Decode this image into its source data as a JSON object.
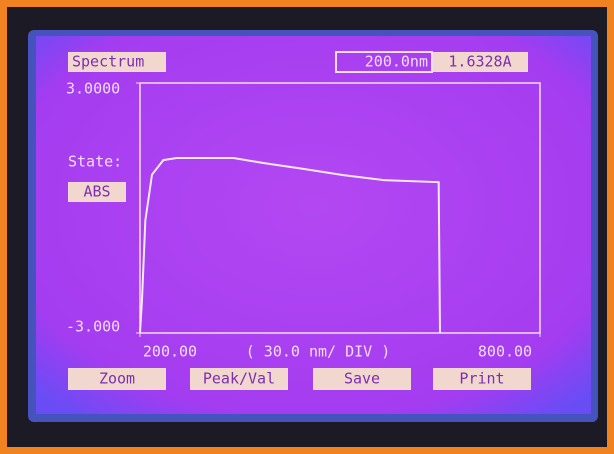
{
  "header": {
    "title": "Spectrum",
    "wavelength": "200.0nm",
    "absorbance": "1.6328A"
  },
  "state": {
    "label": "State:",
    "mode": "ABS"
  },
  "chart_data": {
    "type": "line",
    "x": [
      200,
      203,
      208,
      218,
      235,
      255,
      340,
      385,
      445,
      505,
      565,
      648,
      650
    ],
    "series": [
      {
        "color": "#f7e8ff",
        "values": [
          -3,
          -2.2,
          -0.3,
          0.8,
          1.15,
          1.2,
          1.2,
          1.08,
          0.94,
          0.79,
          0.67,
          0.62,
          -3
        ]
      }
    ],
    "xlim": [
      200,
      800
    ],
    "ylim": [
      -3,
      3
    ],
    "xticks": [
      {
        "value": 200,
        "label": "200.00"
      },
      {
        "value": 800,
        "label": "800.00"
      }
    ],
    "yticks": [
      {
        "value": 3,
        "label": "3.0000"
      },
      {
        "value": -3,
        "label": "-3.000"
      }
    ],
    "x_scale_label": "( 30.0 nm/ DIV )",
    "grid": false
  },
  "buttons": [
    "Zoom",
    "Peak/Val",
    "Save",
    "Print"
  ]
}
